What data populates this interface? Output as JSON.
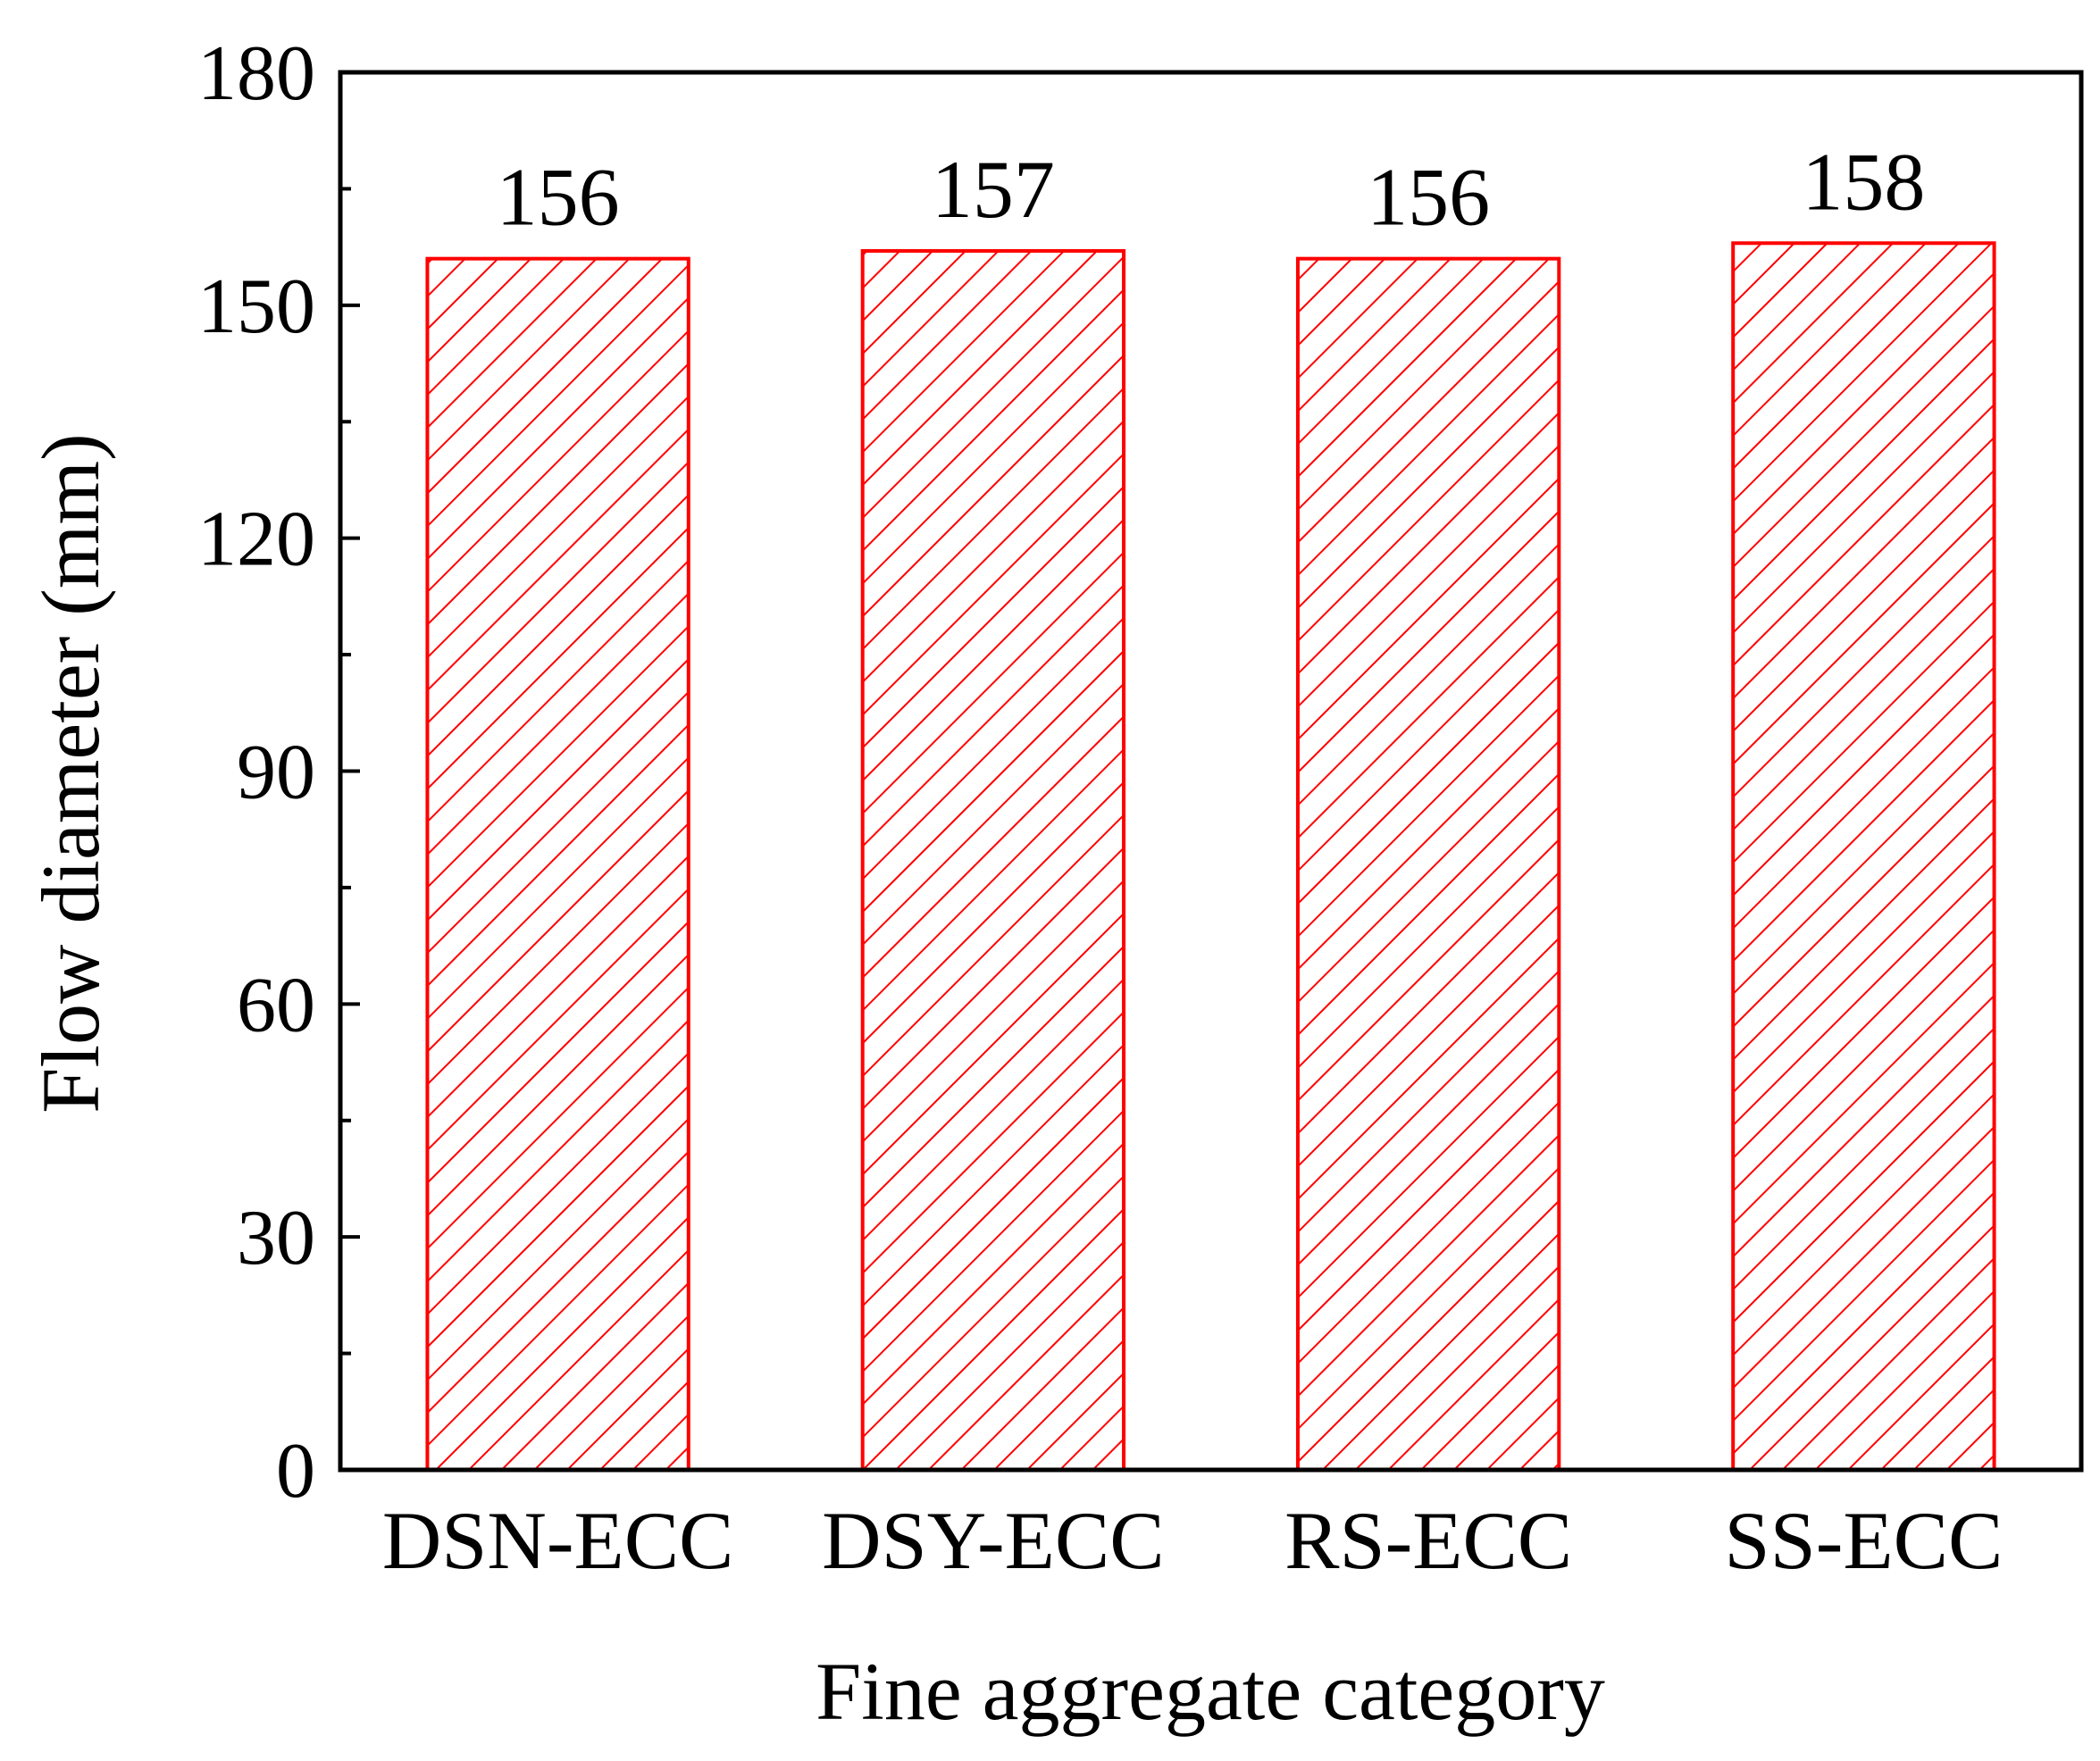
{
  "chart_data": {
    "type": "bar",
    "categories": [
      "DSN-ECC",
      "DSY-ECC",
      "RS-ECC",
      "SS-ECC"
    ],
    "values": [
      156,
      157,
      156,
      158
    ],
    "data_labels": [
      "156",
      "157",
      "156",
      "158"
    ],
    "title": "",
    "xlabel": "Fine aggregate category",
    "ylabel": "Flow diameter (mm)",
    "ylim": [
      0,
      180
    ],
    "yticks": [
      0,
      30,
      60,
      90,
      120,
      150,
      180
    ],
    "grid": false,
    "legend": "none",
    "bar_style": "hatched",
    "bar_color": "#ff0000"
  }
}
